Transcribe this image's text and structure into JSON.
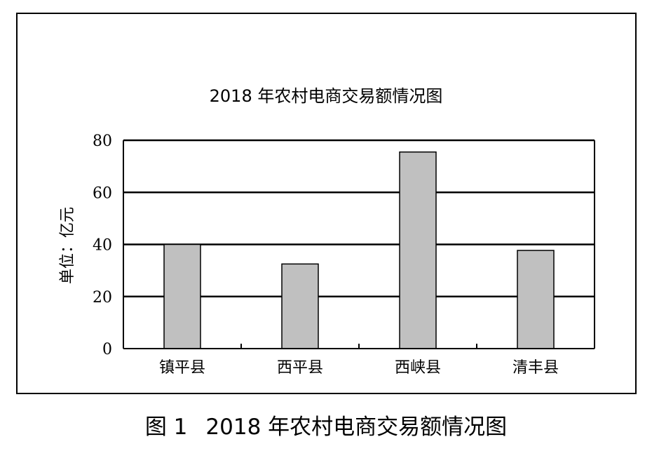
{
  "chart_data": {
    "type": "bar",
    "title": "2018 年农村电商交易额情况图",
    "xlabel": "",
    "ylabel": "单位：亿元",
    "categories": [
      "镇平县",
      "西平县",
      "西峡县",
      "清丰县"
    ],
    "series": [
      {
        "values": [
          40,
          32.5,
          75.5,
          37.7
        ]
      }
    ],
    "ylim": [
      0,
      80
    ],
    "yticks": [
      "0",
      "20",
      "40",
      "60",
      "80"
    ],
    "grid": true,
    "legend": "none",
    "colors": {
      "bar_fill": "#c0c0c0",
      "bar_stroke": "#000000",
      "grid": "#000000",
      "background": "#ffffff"
    }
  },
  "caption": {
    "label": "图 1",
    "text": "2018 年农村电商交易额情况图"
  }
}
